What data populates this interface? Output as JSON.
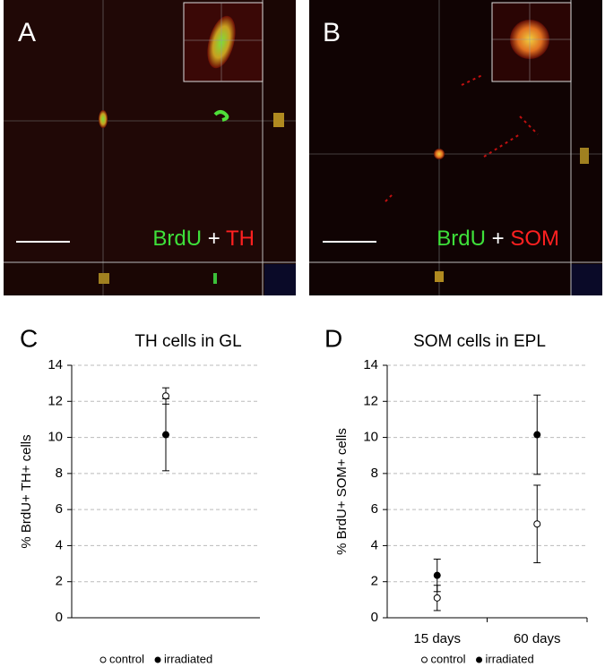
{
  "image_panels": [
    {
      "label": "A",
      "caption": [
        "BrdU",
        "+",
        "TH"
      ]
    },
    {
      "label": "B",
      "caption": [
        "BrdU",
        "+",
        "SOM"
      ]
    }
  ],
  "chart_data": [
    {
      "type": "scatter",
      "panel_label": "C",
      "title": "TH cells in GL",
      "ylabel": "% BrdU+ TH+ cells",
      "categories": [
        null
      ],
      "series": [
        {
          "name": "control",
          "color": "#000000",
          "fill": "#ffffff",
          "values": [
            12.3
          ],
          "errors": [
            0.45
          ]
        },
        {
          "name": "irradiated",
          "color": "#000000",
          "fill": "#000000",
          "values": [
            10.15
          ],
          "errors": [
            2.0
          ]
        }
      ],
      "ylim": [
        0,
        14
      ],
      "yticks": [
        0,
        2,
        4,
        6,
        8,
        10,
        12,
        14
      ],
      "grid": true,
      "legend": "bottom"
    },
    {
      "type": "scatter",
      "panel_label": "D",
      "title": "SOM cells in EPL",
      "ylabel": "% BrdU+ SOM+ cells",
      "categories": [
        "15 days",
        "60 days"
      ],
      "series": [
        {
          "name": "control",
          "color": "#000000",
          "fill": "#ffffff",
          "values": [
            1.1,
            5.2
          ],
          "errors": [
            0.7,
            2.15
          ]
        },
        {
          "name": "irradiated",
          "color": "#000000",
          "fill": "#000000",
          "values": [
            2.35,
            10.15
          ],
          "errors": [
            0.9,
            2.2
          ]
        }
      ],
      "ylim": [
        0,
        14
      ],
      "yticks": [
        0,
        2,
        4,
        6,
        8,
        10,
        12,
        14
      ],
      "grid": true,
      "legend": "bottom"
    }
  ]
}
